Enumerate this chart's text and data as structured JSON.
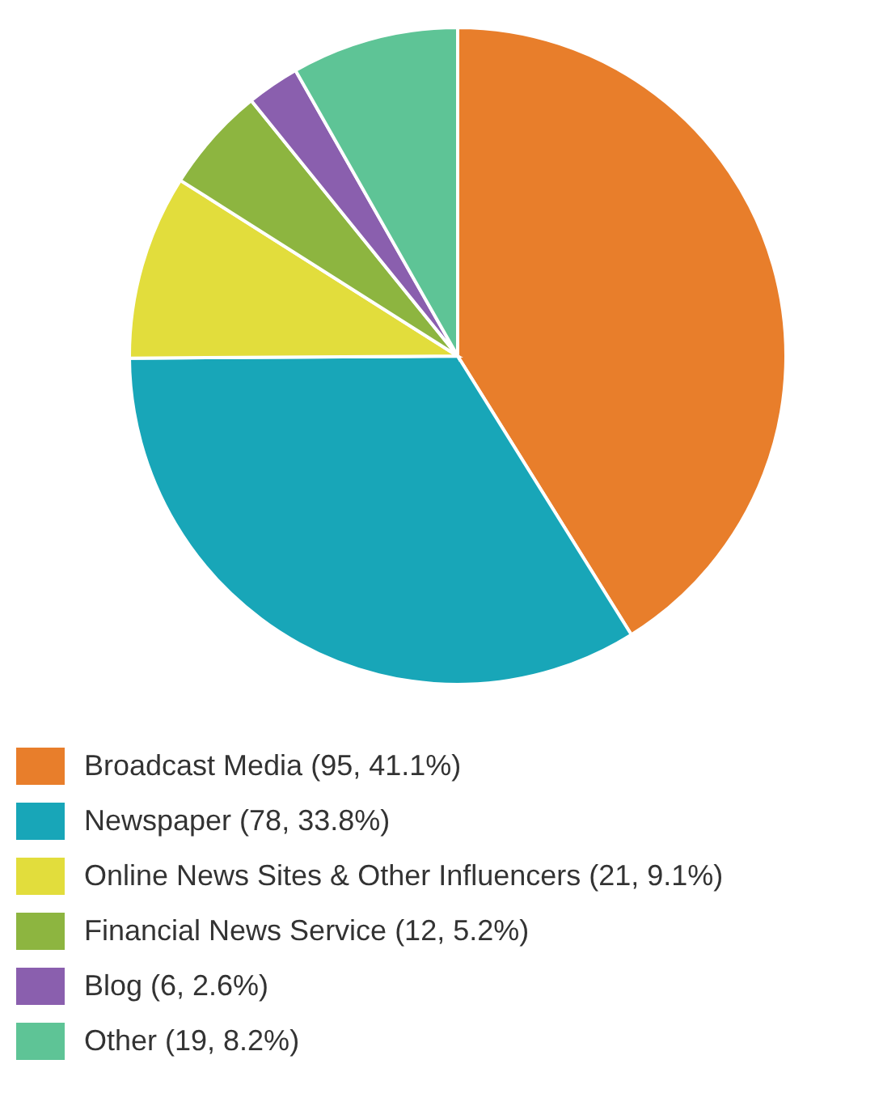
{
  "chart_data": {
    "type": "pie",
    "categories": [
      "Broadcast Media (95, 41.1%)",
      "Newspaper (78, 33.8%)",
      "Online News Sites & Other Influencers (21, 9.1%)",
      "Financial News Service (12, 5.2%)",
      "Blog (6, 2.6%)",
      "Other (19, 8.2%)"
    ],
    "values": [
      95,
      78,
      21,
      12,
      6,
      19
    ],
    "colors": [
      "#e87e2b",
      "#18a6b8",
      "#e2dd3c",
      "#8db540",
      "#8a5fae",
      "#5ec496"
    ],
    "legend": "bottom"
  }
}
